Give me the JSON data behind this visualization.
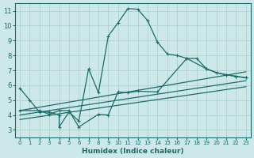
{
  "xlabel": "Humidex (Indice chaleur)",
  "ylabel": "",
  "bg_color": "#cde8e8",
  "grid_color": "#aacccc",
  "line_color": "#1a6b6b",
  "xlim": [
    -0.5,
    23.5
  ],
  "ylim": [
    2.5,
    11.5
  ],
  "yticks": [
    3,
    4,
    5,
    6,
    7,
    8,
    9,
    10,
    11
  ],
  "xticks": [
    0,
    1,
    2,
    3,
    4,
    5,
    6,
    7,
    8,
    9,
    10,
    11,
    12,
    13,
    14,
    15,
    16,
    17,
    18,
    19,
    20,
    21,
    22,
    23
  ],
  "line1_x": [
    0,
    1,
    2,
    3,
    4,
    4,
    5,
    6,
    7,
    8,
    9,
    10,
    11,
    12,
    13,
    14,
    15,
    16,
    17,
    18,
    19,
    20,
    21,
    22,
    23
  ],
  "line1_y": [
    5.8,
    5.0,
    4.2,
    4.2,
    4.0,
    3.2,
    4.2,
    3.6,
    7.1,
    5.5,
    9.3,
    10.2,
    11.15,
    11.1,
    10.35,
    8.9,
    8.1,
    8.0,
    7.8,
    7.8,
    7.1,
    6.85,
    6.7,
    6.6,
    6.5
  ],
  "line2_x": [
    0,
    2,
    3,
    4,
    5,
    6,
    8,
    9,
    10,
    11,
    12,
    14,
    17,
    19,
    20,
    21,
    22,
    23
  ],
  "line2_y": [
    4.3,
    4.3,
    4.05,
    4.3,
    4.3,
    3.2,
    4.05,
    4.0,
    5.55,
    5.5,
    5.6,
    5.55,
    7.8,
    7.1,
    6.85,
    6.7,
    6.6,
    6.5
  ],
  "line3_x": [
    0,
    23
  ],
  "line3_y": [
    4.3,
    6.9
  ],
  "line4_x": [
    0,
    23
  ],
  "line4_y": [
    4.0,
    6.3
  ],
  "line5_x": [
    0,
    23
  ],
  "line5_y": [
    3.7,
    5.9
  ]
}
